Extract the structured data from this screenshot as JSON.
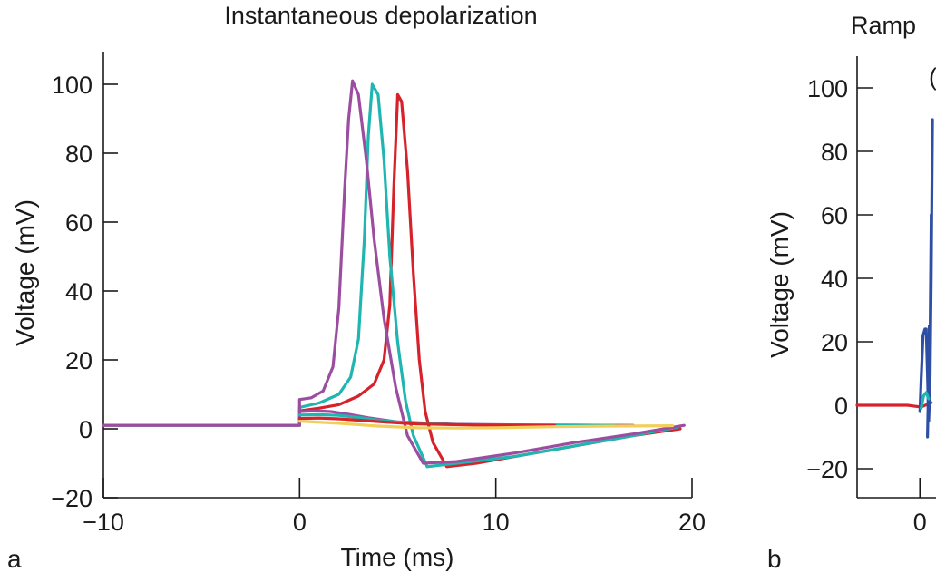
{
  "chart_data": [
    {
      "panel": "a",
      "type": "line",
      "title": "Instantaneous depolarization",
      "xlabel": "Time (ms)",
      "ylabel": "Voltage (mV)",
      "xlim": [
        -10,
        20
      ],
      "ylim": [
        -20,
        110
      ],
      "xticks": [
        -10,
        0,
        10,
        20
      ],
      "yticks": [
        -20,
        0,
        20,
        40,
        60,
        80,
        100
      ],
      "xtick_labels": [
        "−10",
        "0",
        "10",
        "20"
      ],
      "ytick_labels": [
        "−20",
        "0",
        "20",
        "40",
        "60",
        "80",
        "100"
      ],
      "grid": false,
      "legend": "none",
      "series": [
        {
          "color": "#d6222a",
          "x": [
            -10,
            0,
            0,
            1,
            2,
            3,
            3.8,
            4.3,
            4.6,
            4.8,
            5.0,
            5.2,
            5.5,
            5.8,
            6.1,
            6.4,
            6.8,
            7.5,
            9,
            12,
            15,
            17,
            19.4
          ],
          "y": [
            1,
            1,
            5.2,
            6,
            7,
            9.5,
            13,
            20,
            36,
            70,
            97,
            95,
            75,
            45,
            20,
            5,
            -4,
            -11,
            -10,
            -7,
            -4,
            -2,
            0
          ]
        },
        {
          "color": "#1fb5b0",
          "x": [
            -10,
            0,
            0,
            1,
            2,
            2.6,
            3.0,
            3.3,
            3.5,
            3.7,
            4.0,
            4.3,
            4.6,
            5.0,
            5.4,
            5.8,
            6.5,
            8,
            11,
            14,
            17,
            19.3
          ],
          "y": [
            1,
            1,
            6.2,
            7.5,
            10,
            15,
            26,
            55,
            85,
            100,
            97,
            78,
            50,
            25,
            8,
            -2,
            -11,
            -10,
            -8,
            -5,
            -2,
            0.5
          ]
        },
        {
          "color": "#9b4ea0",
          "x": [
            -10,
            0,
            0,
            0.6,
            1.2,
            1.7,
            2.0,
            2.3,
            2.5,
            2.7,
            3.0,
            3.4,
            3.8,
            4.3,
            4.9,
            5.5,
            6.3,
            8,
            11,
            14,
            17,
            19.6
          ],
          "y": [
            1,
            1,
            8.5,
            9,
            11,
            18,
            35,
            70,
            90,
            101,
            97,
            78,
            55,
            32,
            12,
            -2,
            -10,
            -9.5,
            -7,
            -4,
            -1.5,
            1
          ]
        },
        {
          "color": "#9b4ea0",
          "x": [
            0,
            0.8,
            1.6,
            2.5,
            3.5,
            5,
            8,
            12,
            17
          ],
          "y": [
            5,
            5.2,
            5,
            4.2,
            3.2,
            2,
            1.3,
            1.1,
            1
          ]
        },
        {
          "color": "#1fb5b0",
          "x": [
            0,
            1,
            2,
            3,
            4,
            5.5,
            8,
            12,
            16
          ],
          "y": [
            4,
            4.1,
            3.9,
            3.3,
            2.5,
            1.7,
            1.2,
            1.1,
            1
          ]
        },
        {
          "color": "#d6222a",
          "x": [
            0,
            1,
            2,
            3,
            4.5,
            6,
            9,
            13
          ],
          "y": [
            3,
            3.1,
            2.9,
            2.5,
            1.9,
            1.4,
            1.1,
            1
          ]
        },
        {
          "color": "#f2cf5a",
          "x": [
            0,
            2,
            4,
            6,
            8,
            10,
            13,
            16,
            19
          ],
          "y": [
            2.2,
            1.6,
            0.8,
            0.3,
            0.2,
            0.3,
            0.6,
            0.8,
            0.9
          ]
        }
      ]
    },
    {
      "panel": "b",
      "type": "line",
      "title": "Ramp",
      "xlabel": "",
      "ylabel": "Voltage (mV)",
      "xlim": [
        -1,
        3
      ],
      "ylim": [
        -30,
        110
      ],
      "xticks": [
        0
      ],
      "yticks": [
        -20,
        0,
        20,
        40,
        60,
        80,
        100
      ],
      "xtick_labels": [
        "0"
      ],
      "ytick_labels": [
        "−20",
        "0",
        "20",
        "40",
        "60",
        "80",
        "100"
      ],
      "grid": false,
      "legend": "none",
      "series": [
        {
          "color": "#d6222a",
          "x": [
            -1,
            -0.2,
            0,
            0.05,
            0.12,
            0.18
          ],
          "y": [
            0,
            0,
            -0.5,
            -0.3,
            0.3,
            0.8
          ]
        },
        {
          "color": "#2e4fa3",
          "x": [
            0,
            0.02,
            0.05,
            0.08,
            0.1,
            0.12,
            0.14,
            0.16,
            0.18,
            0.2
          ],
          "y": [
            -2,
            8,
            22,
            24,
            24,
            10,
            -5,
            5,
            40,
            90
          ]
        },
        {
          "color": "#2e4fa3",
          "x": [
            0.12,
            0.13,
            0.14,
            0.15,
            0.16,
            0.18
          ],
          "y": [
            -10,
            0,
            12,
            25,
            15,
            60
          ]
        },
        {
          "color": "#1fb5b0",
          "x": [
            0.02,
            0.06,
            0.1,
            0.14
          ],
          "y": [
            -1,
            3,
            4,
            2
          ]
        }
      ]
    }
  ],
  "panel_labels": {
    "a": "a",
    "b": "b"
  },
  "labels": {
    "a_title": "Instantaneous depolarization",
    "a_xlabel": "Time (ms)",
    "a_ylabel": "Voltage (mV)",
    "b_title": "Ramp",
    "b_ylabel": "Voltage (mV)",
    "b_partial_text": "("
  }
}
